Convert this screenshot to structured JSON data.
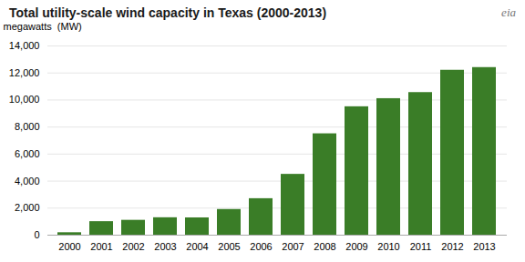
{
  "chart_data": {
    "type": "bar",
    "title": "Total utility-scale wind capacity in Texas (2000-2013)",
    "ylabel": "megawatts  (MW)",
    "annotations": [
      "eia"
    ],
    "categories": [
      "2000",
      "2001",
      "2002",
      "2003",
      "2004",
      "2005",
      "2006",
      "2007",
      "2008",
      "2009",
      "2010",
      "2011",
      "2012",
      "2013"
    ],
    "values": [
      180,
      1000,
      1100,
      1290,
      1280,
      1900,
      2700,
      4500,
      7500,
      9500,
      10100,
      10550,
      12200,
      12400
    ],
    "color": "#3a7d27",
    "ylim": [
      0,
      14000
    ],
    "yticks": [
      0,
      {
        "value": 2000,
        "label": "2,000"
      },
      {
        "value": 4000,
        "label": "4,000"
      },
      {
        "value": 6000,
        "label": "6,000"
      },
      {
        "value": 8000,
        "label": "8,000"
      },
      {
        "value": 10000,
        "label": "10,000"
      },
      {
        "value": 12000,
        "label": "12,000"
      },
      {
        "value": 14000,
        "label": "14,000"
      }
    ],
    "grid": true
  }
}
